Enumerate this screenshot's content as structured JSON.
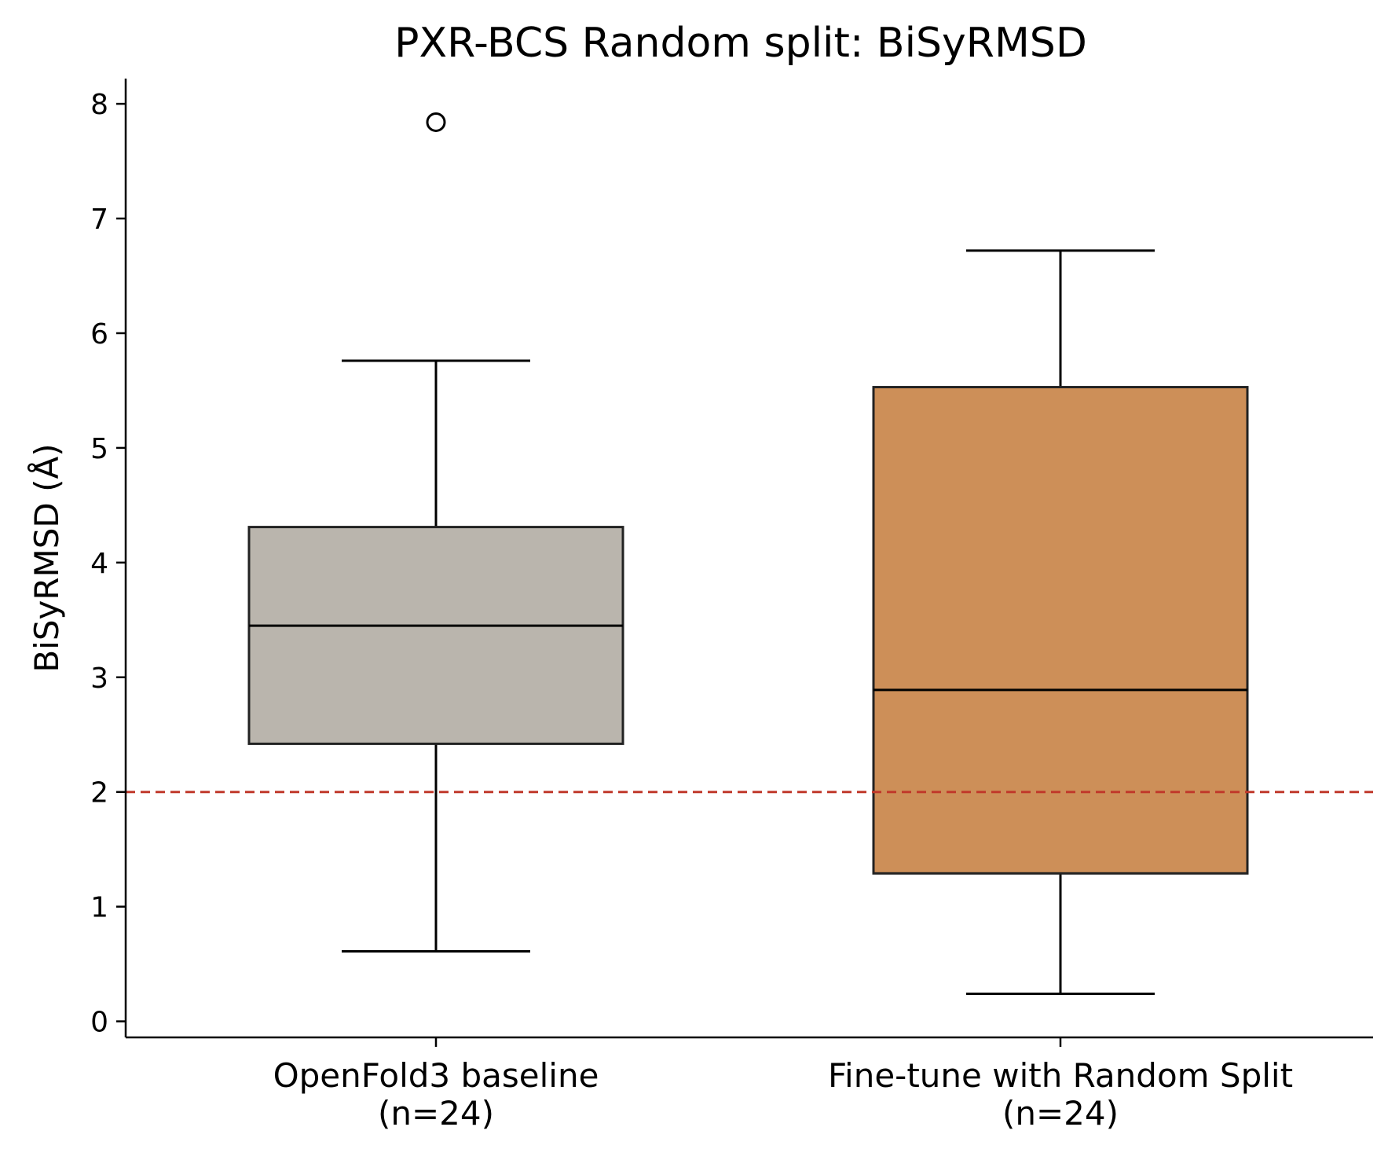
{
  "chart_data": {
    "type": "box",
    "title": "PXR-BCS Random split: BiSyRMSD",
    "xlabel": "",
    "ylabel": "BiSyRMSD (Å)",
    "ylim": [
      -0.14,
      8.22
    ],
    "yticks": [
      0,
      1,
      2,
      3,
      4,
      5,
      6,
      7,
      8
    ],
    "grid": false,
    "categories": [
      [
        "OpenFold3 baseline",
        "(n=24)"
      ],
      [
        "Fine-tune with Random Split",
        "(n=24)"
      ]
    ],
    "boxes": [
      {
        "whisker_low": 0.61,
        "q1": 2.42,
        "median": 3.45,
        "q3": 4.31,
        "whisker_high": 5.76,
        "outliers": [
          7.84
        ],
        "color": "#bab5ad"
      },
      {
        "whisker_low": 0.24,
        "q1": 1.29,
        "median": 2.89,
        "q3": 5.53,
        "whisker_high": 6.72,
        "outliers": [],
        "color": "#cd8f58"
      }
    ],
    "reference_line": {
      "y": 2.0,
      "color": "#c0392b",
      "style": "dashed"
    }
  }
}
